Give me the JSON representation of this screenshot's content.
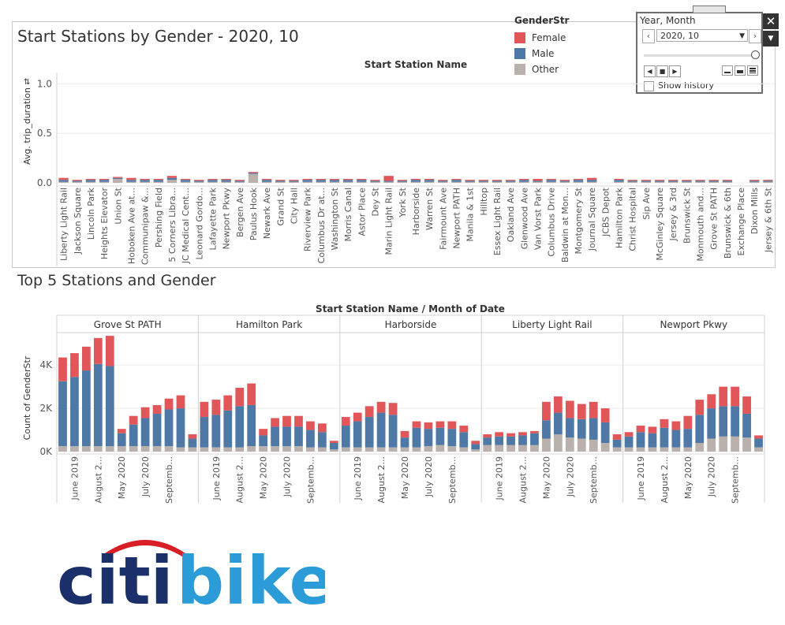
{
  "top_chart": {
    "title": "Start Stations by Gender - 2020, 10",
    "header": "Start Station Name",
    "ylabel": "Avg. trip_duration",
    "yticks": [
      "1.0",
      "0.5",
      "0.0"
    ]
  },
  "legend": {
    "title": "GenderStr",
    "items": [
      {
        "label": "Female",
        "color": "#e15759"
      },
      {
        "label": "Male",
        "color": "#4e79a7"
      },
      {
        "label": "Other",
        "color": "#bab0ac"
      }
    ]
  },
  "filter": {
    "title": "Year, Month",
    "selected": "2020, 10",
    "show_history": "Show history",
    "close_icon": "close-icon",
    "menu_icon": "dropdown-menu-icon"
  },
  "bottom_chart": {
    "title": "Top 5 Stations and Gender",
    "header": "Start Station Name  /  Month of Date",
    "ylabel": "Count of GenderStr",
    "yticks": [
      "4K",
      "2K",
      "0K"
    ]
  },
  "logo": {
    "text_citi": "citi",
    "text_bike": "bike",
    "arc_color": "#d81f26",
    "navy": "#1b2f6b",
    "blue": "#2b9cd8"
  },
  "chart_data": [
    {
      "type": "bar",
      "stacked": true,
      "title": "Start Stations by Gender - 2020, 10",
      "xlabel": "Start Station Name",
      "ylabel": "Avg. trip_duration",
      "ylim": [
        0,
        1.05
      ],
      "grid": true,
      "legend_position": "top-right",
      "categories": [
        "Liberty Light Rail",
        "Jackson Square",
        "Lincoln Park",
        "Heights Elevator",
        "Union St",
        "Hoboken Ave at...",
        "Communipaw &...",
        "Pershing Field",
        "5 Corners Libra...",
        "JC Medical Cent...",
        "Leonard Gordo...",
        "Lafayette Park",
        "Newport Pkwy",
        "Bergen Ave",
        "Paulus Hook",
        "Newark Ave",
        "Grand St",
        "City Hall",
        "Riverview Park",
        "Columbus Dr at...",
        "Washington St",
        "Morris Canal",
        "Astor Place",
        "Dey St",
        "Marin Light Rail",
        "York St",
        "Harborside",
        "Warren St",
        "Fairmount Ave",
        "Newport PATH",
        "Manila & 1st",
        "Hilltop",
        "Essex Light Rail",
        "Oakland Ave",
        "Glenwood Ave",
        "Van Vorst Park",
        "Columbus Drive",
        "Baldwin at Mon...",
        "Montgomery St",
        "Journal Square",
        "JCBS Depot",
        "Hamilton Park",
        "Christ Hospital",
        "Sip Ave",
        "McGinley Square",
        "Jersey & 3rd",
        "Brunswick St",
        "Monmouth and...",
        "Grove St PATH",
        "Brunswick & 6th",
        "Exchange Place",
        "Dixon Mills",
        "Jersey & 6th St"
      ],
      "series": [
        {
          "name": "Other",
          "values": [
            0.01,
            0.01,
            0.01,
            0.01,
            0.04,
            0.01,
            0.01,
            0.01,
            0.03,
            0.01,
            0.01,
            0.01,
            0.01,
            0.01,
            0.09,
            0.01,
            0.01,
            0.01,
            0.01,
            0.01,
            0.01,
            0.01,
            0.01,
            0.01,
            0.01,
            0.01,
            0.01,
            0.01,
            0.01,
            0.01,
            0.01,
            0.01,
            0.01,
            0.01,
            0.01,
            0.01,
            0.01,
            0.01,
            0.01,
            0.01,
            0,
            0.01,
            0.01,
            0.01,
            0.01,
            0.01,
            0.01,
            0.01,
            0.01,
            0.01,
            0,
            0.01,
            0.01
          ]
        },
        {
          "name": "Male",
          "values": [
            0.02,
            0.01,
            0.02,
            0.02,
            0.01,
            0.02,
            0.02,
            0.02,
            0.02,
            0.02,
            0.01,
            0.02,
            0.02,
            0.01,
            0.01,
            0.02,
            0.01,
            0.01,
            0.02,
            0.02,
            0.02,
            0.02,
            0.02,
            0.01,
            0.01,
            0.01,
            0.02,
            0.02,
            0.01,
            0.02,
            0.01,
            0.01,
            0.01,
            0.01,
            0.02,
            0.01,
            0.02,
            0.01,
            0.02,
            0.02,
            0,
            0.02,
            0.01,
            0.01,
            0.01,
            0.01,
            0.01,
            0.01,
            0.01,
            0.01,
            0,
            0.01,
            0.01
          ]
        },
        {
          "name": "Female",
          "values": [
            0.02,
            0.01,
            0.01,
            0.01,
            0.01,
            0.02,
            0.01,
            0.01,
            0.02,
            0.01,
            0.01,
            0.01,
            0.01,
            0.01,
            0.01,
            0.01,
            0.01,
            0.01,
            0.01,
            0.01,
            0.01,
            0.01,
            0.01,
            0.01,
            0.05,
            0.01,
            0.01,
            0.01,
            0.01,
            0.01,
            0.01,
            0.01,
            0.01,
            0.01,
            0.01,
            0.02,
            0.01,
            0.01,
            0.01,
            0.02,
            0,
            0.01,
            0.01,
            0.01,
            0.01,
            0.01,
            0.01,
            0.01,
            0.01,
            0.01,
            0,
            0.01,
            0.01
          ]
        }
      ]
    },
    {
      "type": "bar",
      "stacked": true,
      "title": "Top 5 Stations and Gender",
      "xlabel": "Start Station Name / Month of Date",
      "ylabel": "Count of GenderStr",
      "ylim": [
        0,
        5500
      ],
      "grid": true,
      "panels": [
        {
          "station": "Grove St PATH",
          "other": [
            250,
            250,
            250,
            250,
            250,
            250,
            250,
            250,
            250,
            250,
            200,
            200
          ],
          "male": [
            3000,
            3200,
            3500,
            3800,
            3700,
            600,
            1000,
            1300,
            1500,
            1700,
            1800,
            400
          ],
          "female": [
            1100,
            1100,
            1100,
            1200,
            1400,
            200,
            400,
            500,
            400,
            500,
            600,
            200
          ]
        },
        {
          "station": "Hamilton Park",
          "other": [
            200,
            200,
            200,
            200,
            250,
            250,
            250,
            250,
            250,
            200,
            200,
            100
          ],
          "male": [
            1400,
            1500,
            1700,
            1900,
            1900,
            500,
            900,
            900,
            900,
            800,
            700,
            300
          ],
          "female": [
            700,
            700,
            700,
            850,
            1000,
            300,
            400,
            500,
            500,
            400,
            400,
            100
          ]
        },
        {
          "station": "Harborside",
          "other": [
            200,
            200,
            200,
            200,
            200,
            200,
            200,
            250,
            300,
            250,
            200,
            100
          ],
          "male": [
            1000,
            1200,
            1400,
            1600,
            1500,
            450,
            900,
            800,
            800,
            800,
            700,
            250
          ],
          "female": [
            400,
            400,
            500,
            500,
            550,
            300,
            300,
            300,
            300,
            350,
            300,
            150
          ]
        },
        {
          "station": "Liberty Light Rail",
          "other": [
            300,
            300,
            300,
            300,
            300,
            600,
            800,
            650,
            600,
            550,
            400,
            200
          ],
          "male": [
            350,
            400,
            400,
            450,
            550,
            850,
            1000,
            900,
            900,
            1000,
            950,
            350
          ],
          "female": [
            150,
            200,
            150,
            150,
            100,
            850,
            750,
            800,
            700,
            750,
            650,
            250
          ]
        },
        {
          "station": "Newport Pkwy",
          "other": [
            200,
            200,
            200,
            200,
            200,
            200,
            400,
            600,
            700,
            700,
            650,
            200
          ],
          "male": [
            500,
            700,
            650,
            900,
            800,
            850,
            1300,
            1400,
            1400,
            1400,
            1100,
            400
          ],
          "female": [
            200,
            300,
            300,
            400,
            400,
            600,
            700,
            650,
            900,
            900,
            800,
            150
          ]
        }
      ],
      "tick_labels": [
        "June 2019",
        "August 2...",
        "May 2020",
        "July 2020",
        "Septemb..."
      ]
    }
  ]
}
